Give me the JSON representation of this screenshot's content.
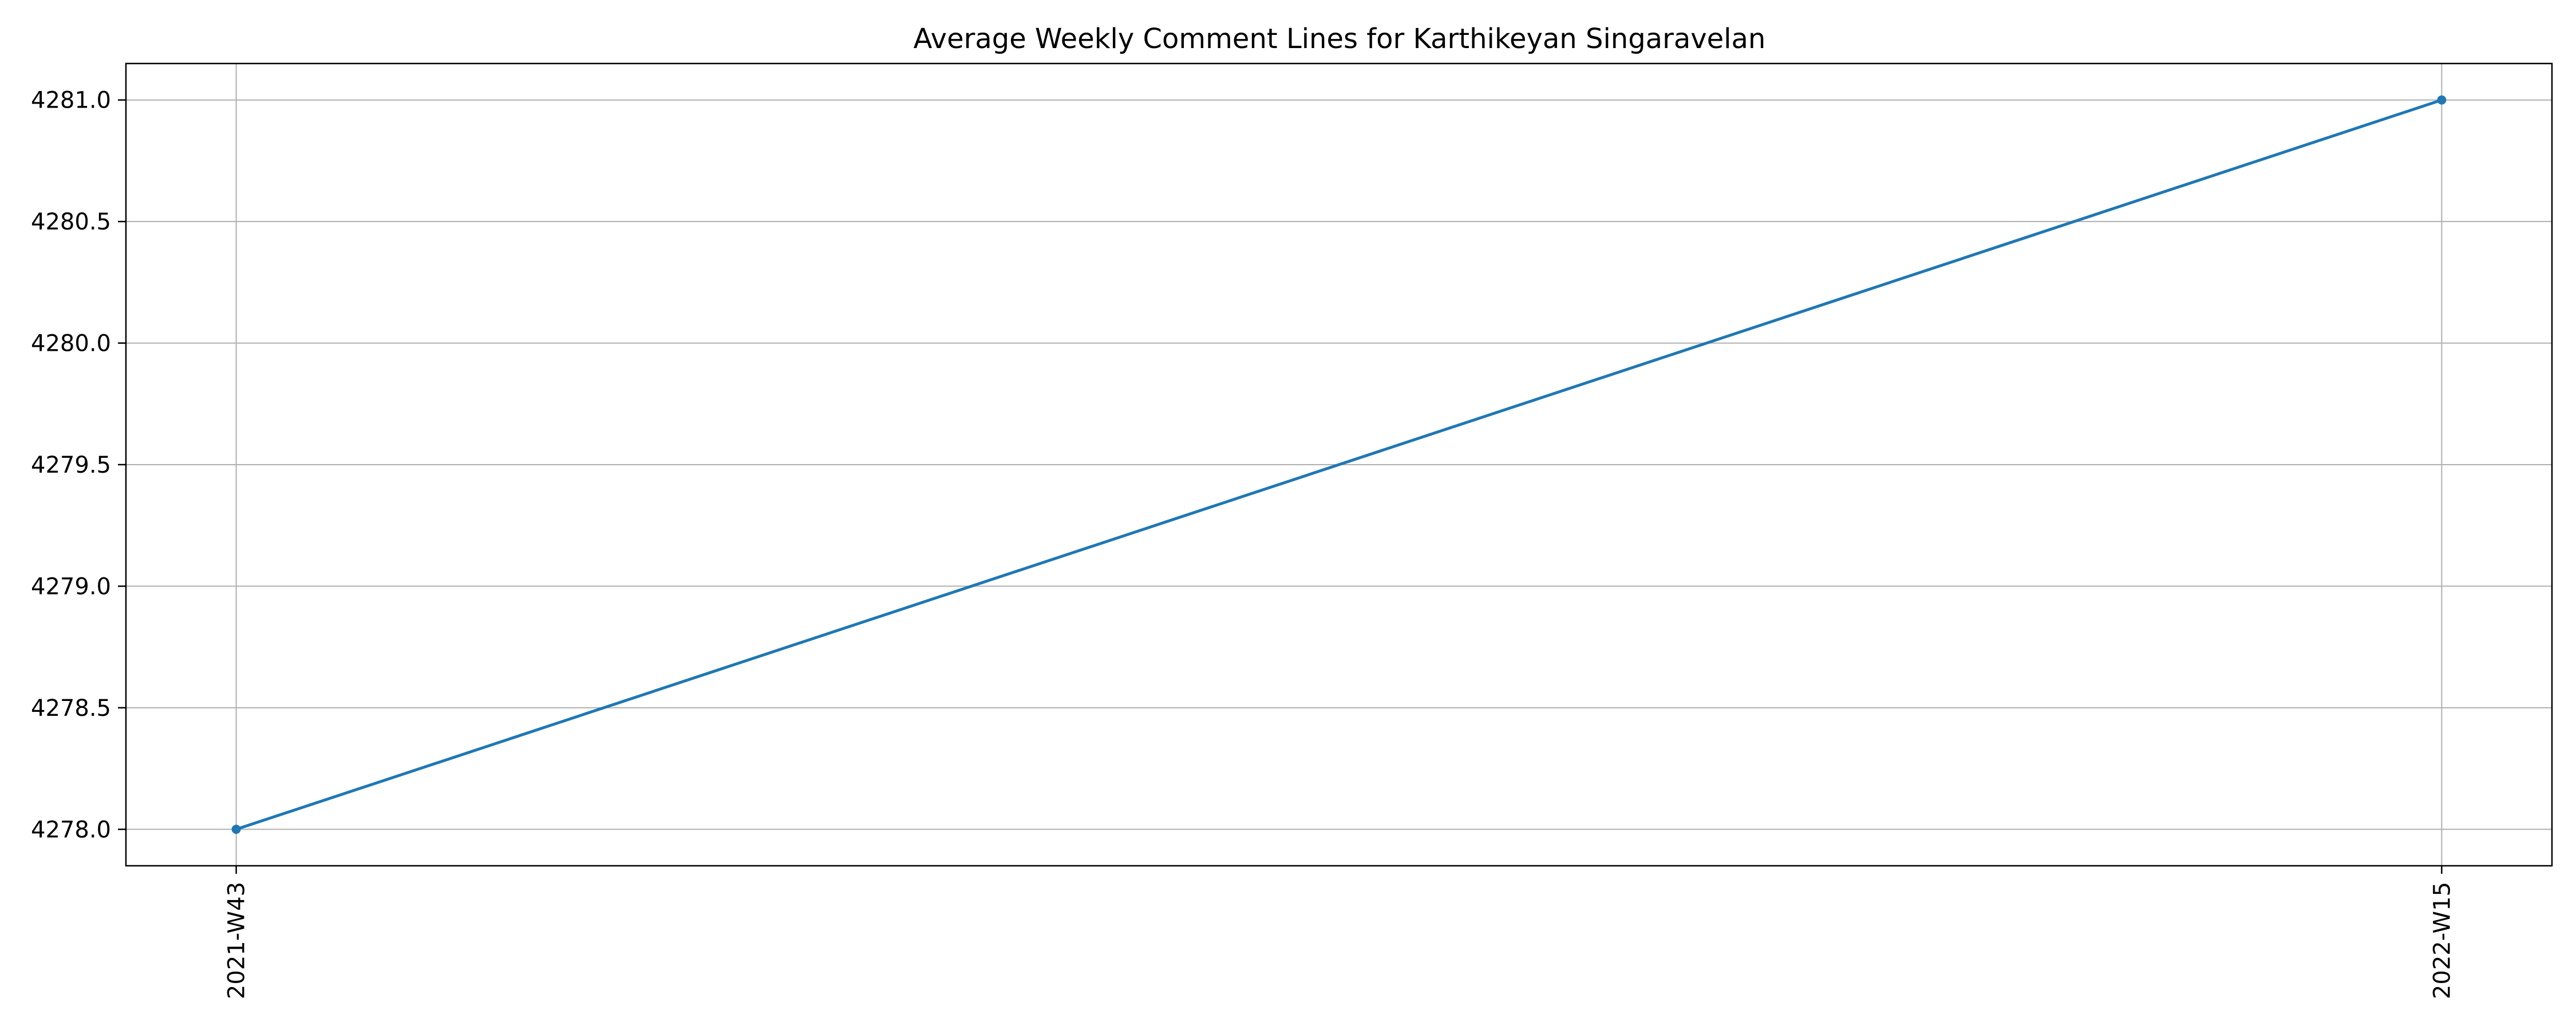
{
  "chart_data": {
    "type": "line",
    "title": "Average Weekly Comment Lines for Karthikeyan Singaravelan",
    "xlabel": "",
    "ylabel": "",
    "categories": [
      "2021-W43",
      "2022-W15"
    ],
    "series": [
      {
        "values": [
          4278.0,
          4281.0
        ],
        "color": "#1f77b4"
      }
    ],
    "ylim": [
      4277.85,
      4281.15
    ],
    "yticks": [
      4278.0,
      4278.5,
      4279.0,
      4279.5,
      4280.0,
      4280.5,
      4281.0
    ],
    "ytick_labels": [
      "4278.0",
      "4278.5",
      "4279.0",
      "4279.5",
      "4280.0",
      "4280.5",
      "4281.0"
    ],
    "grid": true,
    "legend": "none",
    "markers": true,
    "xtick_rotation": "vertical"
  }
}
